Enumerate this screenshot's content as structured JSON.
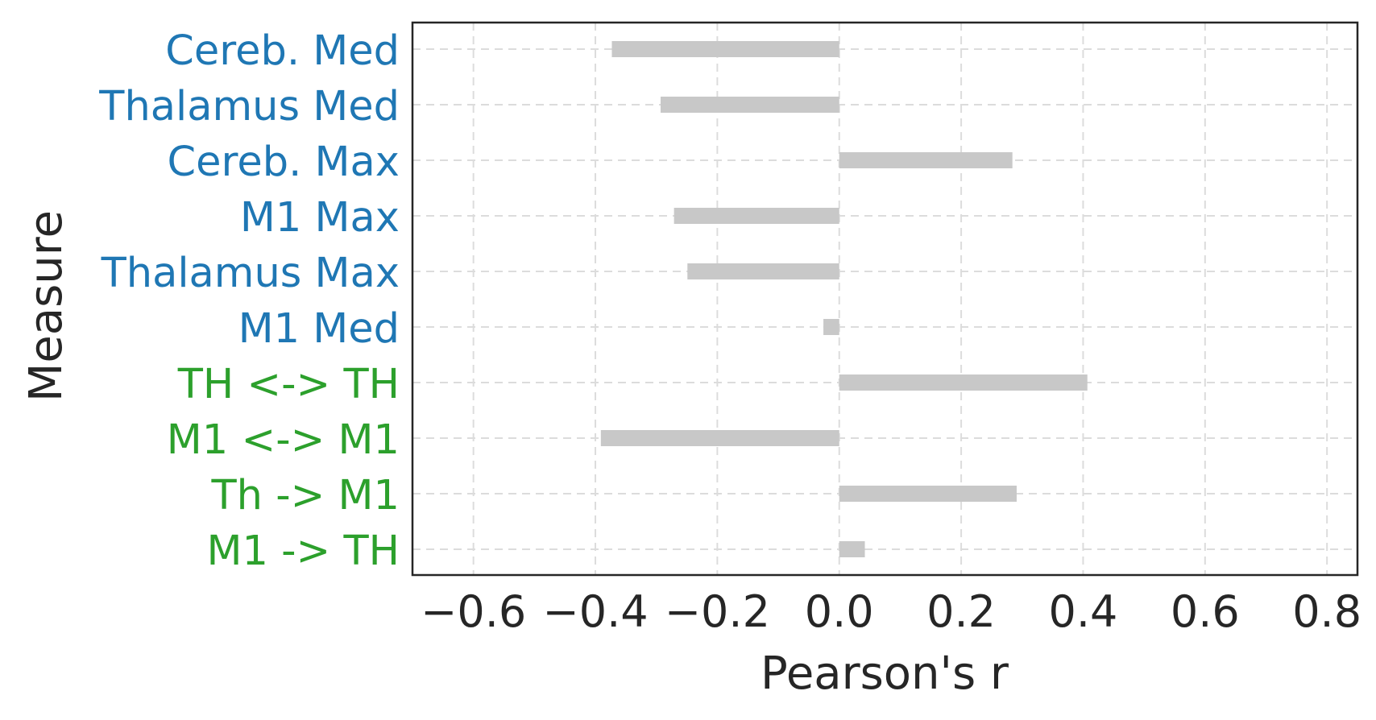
{
  "chart_data": {
    "type": "bar",
    "orientation": "horizontal",
    "xlabel": "Pearson's r",
    "ylabel": "Measure",
    "xlim": [
      -0.7,
      0.85
    ],
    "xticks": [
      -0.6,
      -0.4,
      -0.2,
      0.0,
      0.2,
      0.4,
      0.6,
      0.8
    ],
    "xtick_labels": [
      "−0.6",
      "−0.4",
      "−0.2",
      "0.0",
      "0.2",
      "0.4",
      "0.6",
      "0.8"
    ],
    "grid": true,
    "bar_color": "#c8c8c8",
    "categories": [
      {
        "label": "Cereb. Med",
        "value": -0.373,
        "color": "#1f77b4"
      },
      {
        "label": "Thalamus Med",
        "value": -0.293,
        "color": "#1f77b4"
      },
      {
        "label": "Cereb. Max",
        "value": 0.284,
        "color": "#1f77b4"
      },
      {
        "label": "M1 Max",
        "value": -0.271,
        "color": "#1f77b4"
      },
      {
        "label": "Thalamus Max",
        "value": -0.249,
        "color": "#1f77b4"
      },
      {
        "label": "M1 Med",
        "value": -0.026,
        "color": "#1f77b4"
      },
      {
        "label": "TH <-> TH",
        "value": 0.407,
        "color": "#2ca02c"
      },
      {
        "label": "M1 <-> M1",
        "value": -0.391,
        "color": "#2ca02c"
      },
      {
        "label": "Th -> M1",
        "value": 0.291,
        "color": "#2ca02c"
      },
      {
        "label": "M1 -> TH",
        "value": 0.042,
        "color": "#2ca02c"
      }
    ]
  }
}
